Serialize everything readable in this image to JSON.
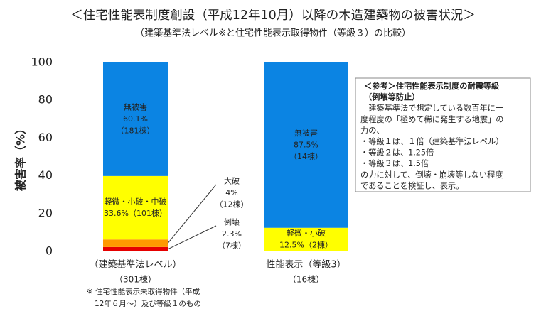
{
  "chart_data": {
    "type": "stacked_bar",
    "title": "＜住宅性能表制度創設（平成12年10月）以降の木造建築物の被害状況＞",
    "subtitle": "（建築基準法レベル※と住宅性能表示取得物件（等級３）の比較）",
    "y_label": "被害率（%）",
    "categories": [
      "（建築基準法レベル）",
      "性能表示（等級3）"
    ],
    "category_notes": [
      "（301棟）",
      "（16棟）"
    ],
    "ylim": [
      0,
      100
    ],
    "yticks": [
      0,
      20,
      40,
      60,
      80,
      100
    ],
    "series": [
      {
        "labels": [
          "倒壊",
          null
        ],
        "color": "#e60000",
        "values": [
          2.3,
          0
        ],
        "value_labels": [
          "2.3%",
          null
        ],
        "count_labels": [
          "（7棟）",
          null
        ]
      },
      {
        "labels": [
          "大破",
          null
        ],
        "color": "#ff9900",
        "values": [
          4,
          0
        ],
        "value_labels": [
          "4%",
          null
        ],
        "count_labels": [
          "（12棟）",
          null
        ]
      },
      {
        "labels": [
          "軽微・小破・中破",
          "軽微・小破"
        ],
        "color": "#ffff00",
        "values": [
          33.6,
          12.5
        ],
        "value_labels": [
          "33.6%（101棟）",
          "12.5%（2棟）"
        ],
        "count_labels": [
          null,
          null
        ]
      },
      {
        "labels": [
          "無被害",
          "無被害"
        ],
        "color": "#0b84e3",
        "values": [
          60.1,
          87.5
        ],
        "value_labels": [
          "60.1%",
          "87.5%"
        ],
        "count_labels": [
          "（181棟）",
          "（14棟）"
        ]
      }
    ],
    "footnote": [
      "※ 住宅性能表示未取得物件（平成",
      "12年６月～）及び等級１のもの"
    ],
    "info_box": [
      "＜参考＞住宅性能表示制度の耐震等級",
      "（倒壊等防止）",
      "　建築基準法で想定している数百年に一",
      "度程度の「極めて稀に発生する地震」の",
      "力の、",
      "・等級１は、１倍（建築基準法レベル）",
      "・等級２は、1.25倍",
      "・等級３は、1.5倍",
      "の力に対して、倒壊・崩壊等しない程度",
      "であることを検証し、表示。"
    ]
  }
}
